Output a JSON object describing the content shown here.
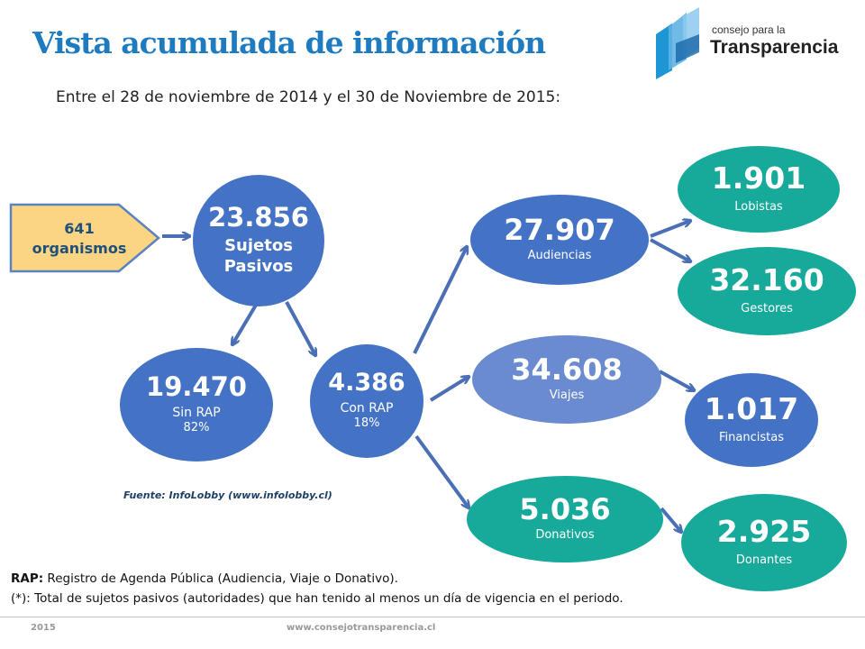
{
  "header": {
    "title": "Vista acumulada de información",
    "subtitle": "Entre el 28 de noviembre de 2014 y el 30 de Noviembre de 2015:"
  },
  "logo": {
    "line1": "consejo para la",
    "line2": "Transparencia"
  },
  "organisms": {
    "number": "641",
    "label": "organismos"
  },
  "nodes": {
    "sujetos": {
      "number": "23.856",
      "label1": "Sujetos",
      "label2": "Pasivos"
    },
    "sin_rap": {
      "number": "19.470",
      "label": "Sin RAP",
      "pct": "82%"
    },
    "con_rap": {
      "number": "4.386",
      "label": "Con RAP",
      "pct": "18%"
    },
    "audiencias": {
      "number": "27.907",
      "label": "Audiencias"
    },
    "viajes": {
      "number": "34.608",
      "label": "Viajes"
    },
    "donativos": {
      "number": "5.036",
      "label": "Donativos"
    },
    "lobistas": {
      "number": "1.901",
      "label": "Lobistas"
    },
    "gestores": {
      "number": "32.160",
      "label": "Gestores"
    },
    "financistas": {
      "number": "1.017",
      "label": "Financistas"
    },
    "donantes": {
      "number": "2.925",
      "label": "Donantes"
    }
  },
  "source": "Fuente: InfoLobby (www.infolobby.cl)",
  "notes": {
    "rap_key": "RAP:",
    "rap_text": " Registro de Agenda Pública (Audiencia, Viaje o Donativo).",
    "star_text": "(*): Total de sujetos pasivos (autoridades) que han tenido al menos un día de vigencia en el periodo."
  },
  "footer": {
    "year": "2015",
    "website": "www.consejotransparencia.cl"
  },
  "colors": {
    "blue_dark": "#4472c4",
    "blue_light": "#6a8bd0",
    "teal": "#17a99a",
    "arrow": "#4a6fb5",
    "title": "#1f7bc0",
    "pentagon_fill": "#fbd583",
    "pentagon_stroke": "#5b82c0"
  }
}
